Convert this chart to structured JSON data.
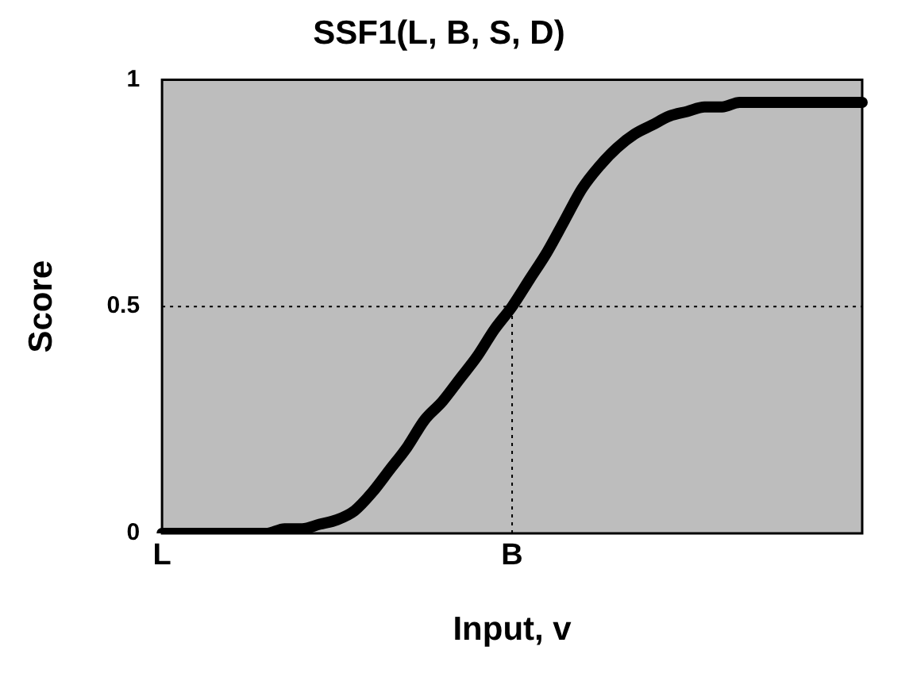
{
  "chart_data": {
    "type": "line",
    "title": "SSF1(L, B, S, D)",
    "xlabel": "Input, v",
    "ylabel": "Score",
    "categories": [
      "L",
      null,
      null,
      null,
      null,
      null,
      null,
      null,
      null,
      null,
      null,
      null,
      null,
      null,
      null,
      null,
      null,
      null,
      null,
      null,
      "B",
      null,
      null,
      null,
      null,
      null,
      null,
      null,
      null,
      null,
      null,
      null,
      null,
      null,
      null,
      null,
      null,
      null,
      null,
      null,
      null
    ],
    "series": [
      {
        "color": "#000000",
        "values": [
          0,
          0,
          0,
          0,
          0,
          0,
          0,
          0.01,
          0.01,
          0.02,
          0.03,
          0.05,
          0.09,
          0.14,
          0.19,
          0.25,
          0.29,
          0.34,
          0.39,
          0.45,
          0.5,
          0.56,
          0.62,
          0.69,
          0.76,
          0.81,
          0.85,
          0.88,
          0.9,
          0.92,
          0.93,
          0.94,
          0.94,
          0.95,
          0.95,
          0.95,
          0.95,
          0.95,
          0.95,
          0.95,
          0.95
        ]
      }
    ],
    "ylim": [
      0,
      1
    ],
    "yticks": [
      0,
      0.5,
      1
    ],
    "ref_lines": [
      {
        "axis": "y",
        "value": 0.5,
        "line_style": "dotted"
      },
      {
        "axis": "x",
        "value": "B",
        "line_style": "dotted"
      }
    ],
    "grid": false,
    "legend": false,
    "marker": "none",
    "line_style": "solid"
  }
}
